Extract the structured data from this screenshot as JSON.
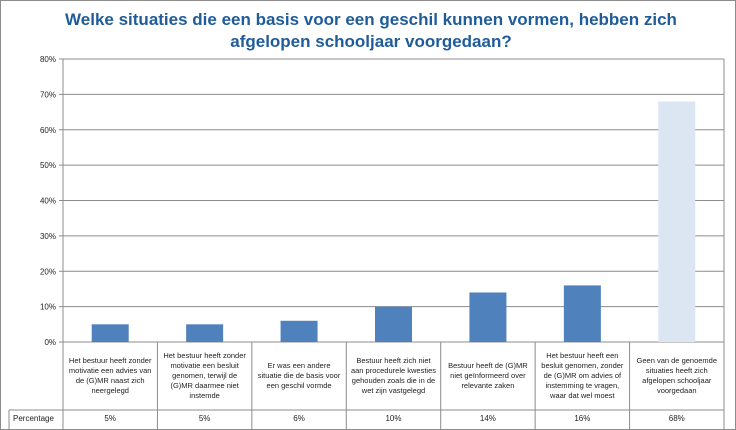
{
  "chart_data": {
    "type": "bar",
    "title": "Welke situaties die een basis voor een geschil kunnen vormen, hebben zich afgelopen schooljaar voorgedaan?",
    "categories": [
      "Het bestuur heeft zonder motivatie een advies van de (G)MR naast zich neergelegd",
      "Het bestuur heeft zonder motivatie een besluit genomen, terwijl de (G)MR daarmee niet instemde",
      "Er was een andere situatie die de basis voor een geschil vormde",
      "Bestuur heeft zich niet aan procedurele kwesties gehouden zoals die in de wet zijn vastgelegd",
      "Bestuur heeft de (G)MR niet geïnformeerd over relevante zaken",
      "Het bestuur heeft een besluit genomen, zonder de (G)MR om advies of instemming te vragen, waar dat wel moest",
      "Geen van de genoemde situaties heeft zich afgelopen schooljaar voorgedaan"
    ],
    "series": [
      {
        "name": "Percentage",
        "values": [
          5,
          5,
          6,
          10,
          14,
          16,
          68
        ],
        "labels": [
          "5%",
          "5%",
          "6%",
          "10%",
          "14%",
          "16%",
          "68%"
        ]
      }
    ],
    "ylim": [
      0,
      80
    ],
    "yticks": [
      "0%",
      "10%",
      "20%",
      "30%",
      "40%",
      "50%",
      "60%",
      "70%",
      "80%"
    ],
    "grid": true,
    "legend": "data table row",
    "colors": {
      "bar": "#4f81bd",
      "bar_highlight": "#dce6f2",
      "title": "#1f5c99",
      "grid": "#8c8c8c"
    }
  }
}
